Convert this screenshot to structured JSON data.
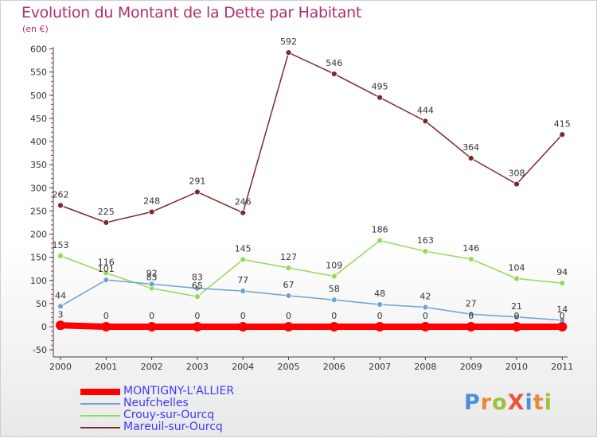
{
  "title": "Evolution du Montant de la Dette par Habitant",
  "unit": "(en €)",
  "brand": {
    "text": "ProXiti",
    "letter_colors": [
      "#4a8fd6",
      "#e8883a",
      "#9ac23c",
      "#e8543a",
      "#4a8fd6",
      "#e8883a",
      "#9ac23c"
    ]
  },
  "chart_data": {
    "type": "line",
    "title": "Evolution du Montant de la Dette par Habitant",
    "ylabel": "(en €)",
    "xlabel": "",
    "x": [
      "2000",
      "2001",
      "2002",
      "2003",
      "2004",
      "2005",
      "2006",
      "2007",
      "2008",
      "2009",
      "2010",
      "2011"
    ],
    "ylim": [
      -50,
      600
    ],
    "yticks": [
      -50,
      0,
      50,
      100,
      150,
      200,
      250,
      300,
      350,
      400,
      450,
      500,
      550,
      600
    ],
    "grid": false,
    "legend_position": "bottom-left",
    "series": [
      {
        "name": "MONTIGNY-L'ALLIER",
        "color": "#ff0000",
        "values": [
          3,
          0,
          0,
          0,
          0,
          0,
          0,
          0,
          0,
          0,
          0,
          0
        ],
        "labels": [
          "3",
          "0",
          "0",
          "0",
          "0",
          "0",
          "0",
          "0",
          "0",
          "0",
          "0",
          "0"
        ]
      },
      {
        "name": "Neufchelles",
        "color": "#6fa1d3",
        "values": [
          44,
          101,
          92,
          83,
          77,
          67,
          58,
          48,
          42,
          27,
          21,
          14
        ],
        "labels": [
          "44",
          "101",
          "92",
          "83",
          "77",
          "67",
          "58",
          "48",
          "42",
          "27",
          "21",
          "14"
        ]
      },
      {
        "name": "Crouy-sur-Ourcq",
        "color": "#93d95a",
        "values": [
          153,
          116,
          83,
          65,
          145,
          127,
          109,
          186,
          163,
          146,
          104,
          94
        ],
        "labels": [
          "153",
          "116",
          "83",
          "65",
          "145",
          "127",
          "109",
          "186",
          "163",
          "146",
          "104",
          "94"
        ]
      },
      {
        "name": "Mareuil-sur-Ourcq",
        "color": "#7a2a2a",
        "values": [
          262,
          225,
          248,
          291,
          246,
          592,
          546,
          495,
          444,
          364,
          308,
          415
        ],
        "labels": [
          "262",
          "225",
          "248",
          "291",
          "246",
          "592",
          "546",
          "495",
          "444",
          "364",
          "308",
          "415"
        ]
      }
    ]
  }
}
